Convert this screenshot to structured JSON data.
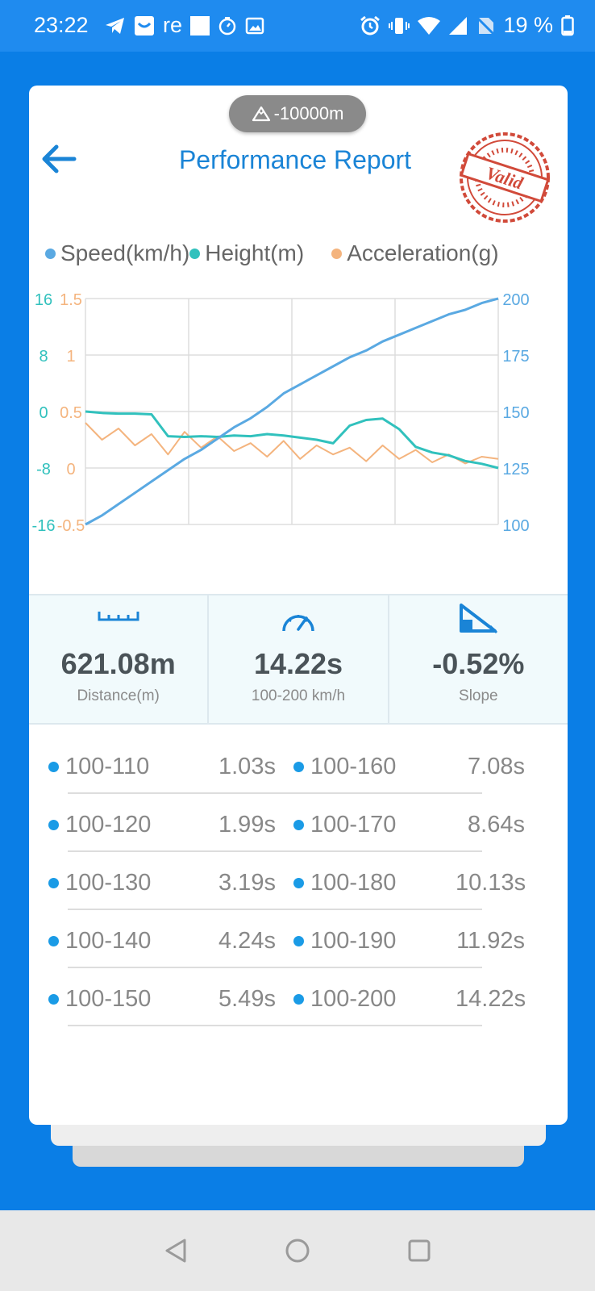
{
  "status_bar": {
    "time": "23:22",
    "app_text": "re",
    "battery": "19 %"
  },
  "card": {
    "altitude": "-10000m",
    "title": "Performance Report",
    "stamp_text": "Valid"
  },
  "legend": [
    {
      "label": "Speed(km/h)",
      "color": "#5aa9e2"
    },
    {
      "label": "Height(m)",
      "color": "#31c1bd"
    },
    {
      "label": "Acceleration(g)",
      "color": "#f4b47e"
    }
  ],
  "chart_data": {
    "type": "line",
    "axes": {
      "height": {
        "ticks": [
          "16",
          "8",
          "0",
          "-8",
          "-16"
        ],
        "range": [
          -16,
          16
        ],
        "color": "#31c1bd"
      },
      "acceleration": {
        "ticks": [
          "1.5",
          "1",
          "0.5",
          "0",
          "-0.5"
        ],
        "range": [
          -0.5,
          1.5
        ],
        "color": "#f4b47e"
      },
      "speed": {
        "ticks": [
          "200",
          "175",
          "150",
          "125",
          "100"
        ],
        "range": [
          100,
          200
        ],
        "color": "#5aa9e2"
      }
    },
    "series": [
      {
        "name": "Speed(km/h)",
        "axis": "speed",
        "values": [
          100,
          104,
          109,
          114,
          119,
          124,
          129,
          133,
          138,
          143,
          147,
          152,
          158,
          162,
          166,
          170,
          174,
          177,
          181,
          184,
          187,
          190,
          193,
          195,
          198,
          200
        ]
      },
      {
        "name": "Height(m)",
        "axis": "height",
        "values": [
          0,
          -0.2,
          -0.3,
          -0.3,
          -0.4,
          -3.5,
          -3.6,
          -3.5,
          -3.6,
          -3.4,
          -3.5,
          -3.2,
          -3.4,
          -3.7,
          -4,
          -4.5,
          -2,
          -1.2,
          -1,
          -2.5,
          -5,
          -5.8,
          -6.2,
          -7,
          -7.4,
          -8
        ]
      },
      {
        "name": "Acceleration(g)",
        "axis": "acceleration",
        "values": [
          0.4,
          0.25,
          0.35,
          0.2,
          0.3,
          0.12,
          0.32,
          0.18,
          0.28,
          0.15,
          0.22,
          0.1,
          0.24,
          0.08,
          0.2,
          0.12,
          0.18,
          0.06,
          0.2,
          0.08,
          0.16,
          0.05,
          0.12,
          0.04,
          0.1,
          0.08
        ]
      }
    ],
    "grid": true
  },
  "stats": [
    {
      "value": "621.08m",
      "label": "Distance(m)",
      "icon": "ruler-icon"
    },
    {
      "value": "14.22s",
      "label": "100-200 km/h",
      "icon": "speedometer-icon"
    },
    {
      "value": "-0.52%",
      "label": "Slope",
      "icon": "slope-icon"
    }
  ],
  "splits": [
    {
      "left": {
        "range": "100-110",
        "time": "1.03s"
      },
      "right": {
        "range": "100-160",
        "time": "7.08s"
      }
    },
    {
      "left": {
        "range": "100-120",
        "time": "1.99s"
      },
      "right": {
        "range": "100-170",
        "time": "8.64s"
      }
    },
    {
      "left": {
        "range": "100-130",
        "time": "3.19s"
      },
      "right": {
        "range": "100-180",
        "time": "10.13s"
      }
    },
    {
      "left": {
        "range": "100-140",
        "time": "4.24s"
      },
      "right": {
        "range": "100-190",
        "time": "11.92s"
      }
    },
    {
      "left": {
        "range": "100-150",
        "time": "5.49s"
      },
      "right": {
        "range": "100-200",
        "time": "14.22s"
      }
    }
  ]
}
